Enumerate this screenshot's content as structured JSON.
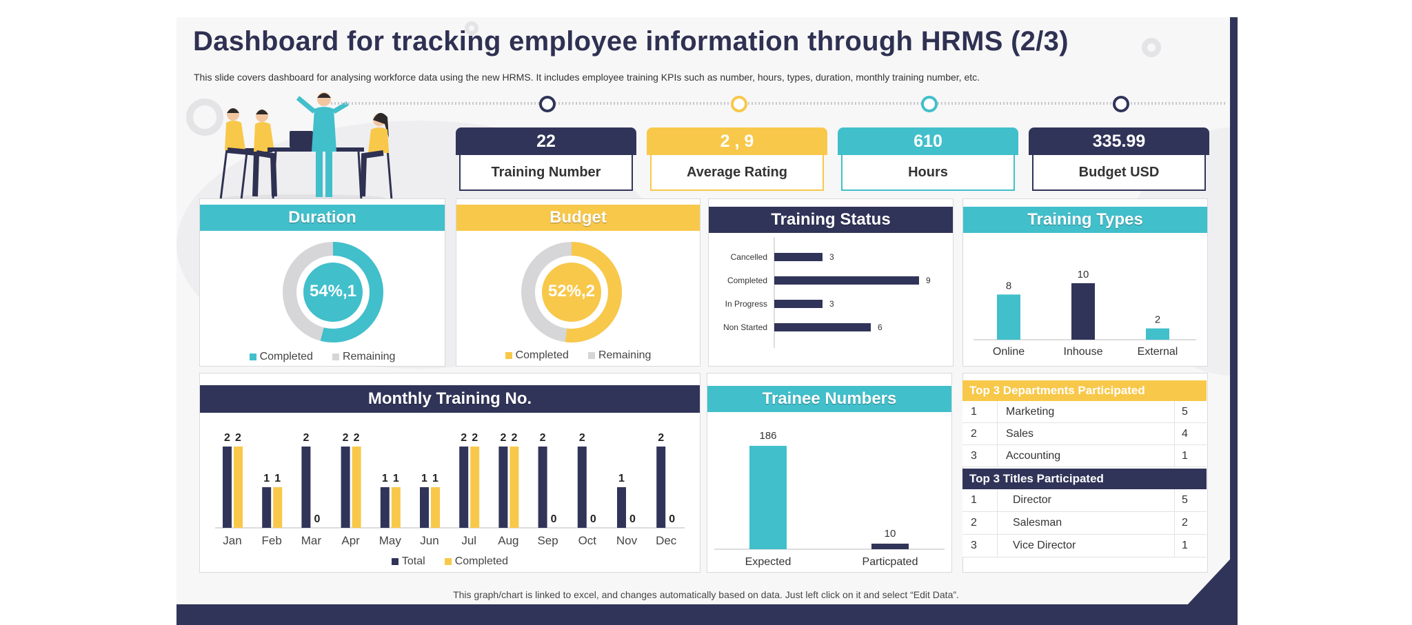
{
  "header": {
    "title": "Dashboard for tracking employee information through HRMS (2/3)",
    "subtitle": "This slide covers dashboard for analysing workforce data using the new HRMS. It includes employee training KPIs such as number, hours, types, duration, monthly training number, etc."
  },
  "kpis": [
    {
      "value": "22",
      "label": "Training Number",
      "color": "#313459"
    },
    {
      "value": "2 , 9",
      "label": "Average Rating",
      "color": "#f8c84a"
    },
    {
      "value": "610",
      "label": "Hours",
      "color": "#41bfcb"
    },
    {
      "value": "335.99",
      "label": "Budget USD",
      "color": "#313459"
    }
  ],
  "cards": {
    "duration": {
      "title": "Duration",
      "center_label": "54%,1",
      "legend": [
        "Completed",
        "Remaining"
      ],
      "completed_fraction": 0.54,
      "color": "#41bfcb",
      "remaining_color": "#d6d6d8"
    },
    "budget": {
      "title": "Budget",
      "center_label": "52%,2",
      "legend": [
        "Completed",
        "Remaining"
      ],
      "completed_fraction": 0.52,
      "color": "#f8c84a",
      "remaining_color": "#d6d6d8"
    },
    "training_status": {
      "title": "Training Status"
    },
    "training_types": {
      "title": "Training Types"
    },
    "monthly": {
      "title": "Monthly  Training No.",
      "legend": [
        "Total",
        "Completed"
      ]
    },
    "trainee": {
      "title": "Trainee Numbers"
    }
  },
  "chart_data": [
    {
      "type": "bar",
      "orientation": "horizontal",
      "title": "Training Status",
      "categories": [
        "Cancelled",
        "Completed",
        "In Progress",
        "Non Started"
      ],
      "values": [
        3,
        9,
        3,
        6
      ],
      "color": "#313459"
    },
    {
      "type": "bar",
      "title": "Training Types",
      "categories": [
        "Online",
        "Inhouse",
        "External"
      ],
      "values": [
        8,
        10,
        2
      ],
      "colors": [
        "#41bfcb",
        "#313459",
        "#41bfcb"
      ]
    },
    {
      "type": "bar",
      "title": "Monthly  Training No.",
      "categories": [
        "Jan",
        "Feb",
        "Mar",
        "Apr",
        "May",
        "Jun",
        "Jul",
        "Aug",
        "Sep",
        "Oct",
        "Nov",
        "Dec"
      ],
      "series": [
        {
          "name": "Total",
          "values": [
            2,
            1,
            2,
            2,
            1,
            1,
            2,
            2,
            2,
            2,
            1,
            2
          ],
          "color": "#313459"
        },
        {
          "name": "Completed",
          "values": [
            2,
            1,
            0,
            2,
            1,
            1,
            2,
            2,
            0,
            0,
            0,
            0
          ],
          "color": "#f8c84a"
        }
      ]
    },
    {
      "type": "bar",
      "title": "Trainee Numbers",
      "categories": [
        "Expected",
        "Particpated"
      ],
      "values": [
        186,
        10
      ],
      "colors": [
        "#41bfcb",
        "#313459"
      ]
    }
  ],
  "tables": {
    "departments": {
      "title": "Top 3 Departments Participated",
      "rows": [
        [
          "1",
          "Marketing",
          "5"
        ],
        [
          "2",
          "Sales",
          "4"
        ],
        [
          "3",
          "Accounting",
          "1"
        ]
      ]
    },
    "titles": {
      "title": "Top 3 Titles Participated",
      "rows": [
        [
          "1",
          "Director",
          "5"
        ],
        [
          "2",
          "Salesman",
          "2"
        ],
        [
          "3",
          "Vice Director",
          "1"
        ]
      ]
    }
  },
  "footnote": "This graph/chart is linked to excel,  and changes automatically based on data. Just left click on it and select “Edit Data”."
}
